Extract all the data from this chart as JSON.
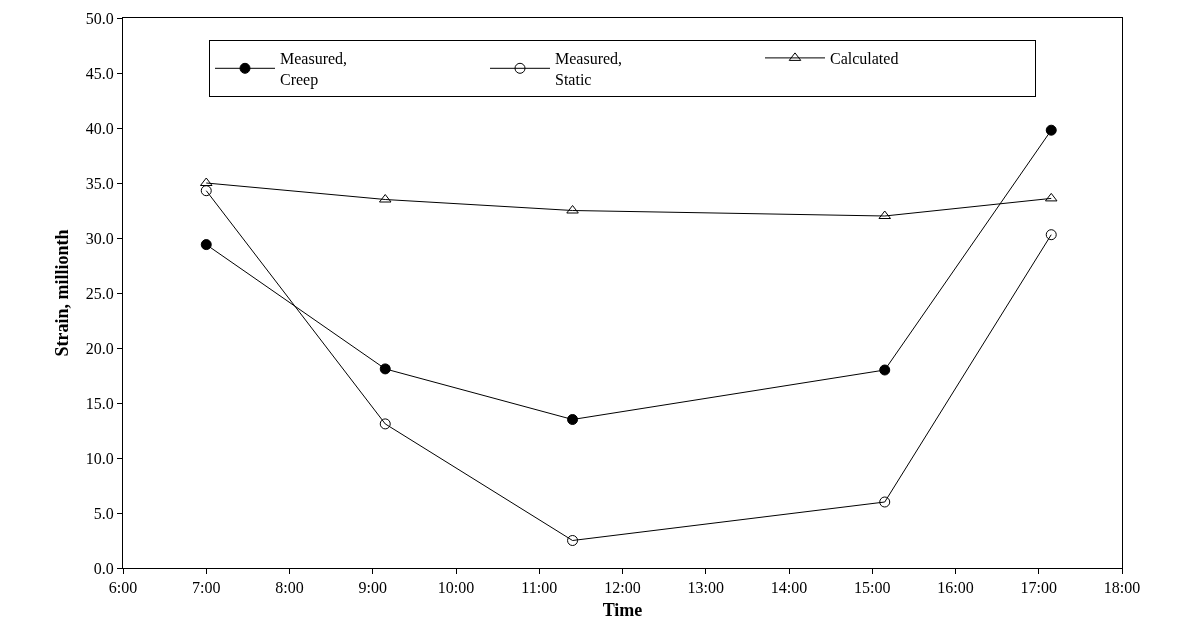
{
  "chart_data": {
    "type": "line",
    "xlabel": "Time",
    "ylabel": "Strain, millionth",
    "x": [
      7,
      9.15,
      11.4,
      15.15,
      17.15
    ],
    "series": [
      {
        "name": "Measured,\nCreep",
        "color": "#000000",
        "marker": "circle",
        "values": [
          29.4,
          18.1,
          13.5,
          18.0,
          39.8
        ]
      },
      {
        "name": "Measured,\nStatic",
        "color": "#000000",
        "marker": "circle-open",
        "values": [
          34.3,
          13.1,
          2.5,
          6.0,
          30.3
        ]
      },
      {
        "name": "Calculated",
        "color": "#000000",
        "marker": "triangle-open",
        "values": [
          35.0,
          33.5,
          32.5,
          32.0,
          33.6
        ]
      }
    ],
    "xlim": [
      6,
      18
    ],
    "xticks": [
      {
        "value": 6,
        "label": "6:00"
      },
      {
        "value": 7,
        "label": "7:00"
      },
      {
        "value": 8,
        "label": "8:00"
      },
      {
        "value": 9,
        "label": "9:00"
      },
      {
        "value": 10,
        "label": "10:00"
      },
      {
        "value": 11,
        "label": "11:00"
      },
      {
        "value": 12,
        "label": "12:00"
      },
      {
        "value": 13,
        "label": "13:00"
      },
      {
        "value": 14,
        "label": "14:00"
      },
      {
        "value": 15,
        "label": "15:00"
      },
      {
        "value": 16,
        "label": "16:00"
      },
      {
        "value": 17,
        "label": "17:00"
      },
      {
        "value": 18,
        "label": "18:00"
      }
    ],
    "ylim": [
      0,
      50
    ],
    "yticks": [
      {
        "value": 0,
        "label": "0.0"
      },
      {
        "value": 5,
        "label": "5.0"
      },
      {
        "value": 10,
        "label": "10.0"
      },
      {
        "value": 15,
        "label": "15.0"
      },
      {
        "value": 20,
        "label": "20.0"
      },
      {
        "value": 25,
        "label": "25.0"
      },
      {
        "value": 30,
        "label": "30.0"
      },
      {
        "value": 35,
        "label": "35.0"
      },
      {
        "value": 40,
        "label": "40.0"
      },
      {
        "value": 45,
        "label": "45.0"
      },
      {
        "value": 50,
        "label": "50.0"
      }
    ],
    "grid": false,
    "legend": "top",
    "line_style": "solid"
  }
}
